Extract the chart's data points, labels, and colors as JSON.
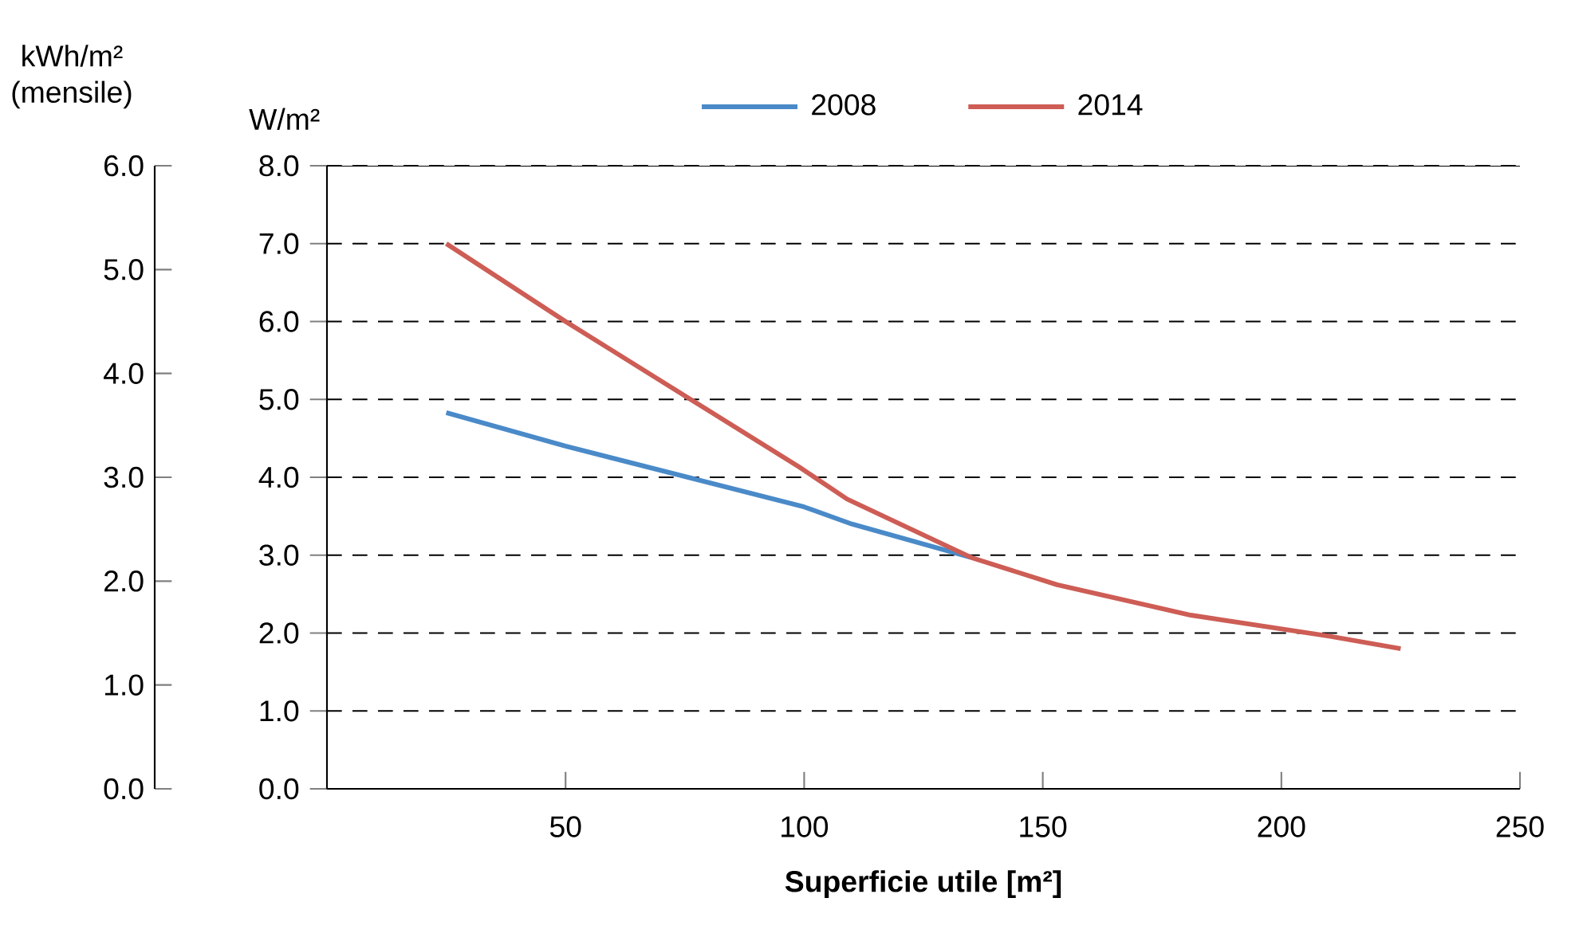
{
  "chart_data": {
    "type": "line",
    "xlabel": "**Superficie utile [m²]**",
    "ylabel": "W/m²",
    "y2label": "kWh/m² (mensile)",
    "series": [
      {
        "name": "2008",
        "color": "#4a8ac8",
        "x": [
          25,
          50,
          100,
          110,
          135
        ],
        "values": [
          4.83,
          4.4,
          3.62,
          3.4,
          2.97
        ]
      },
      {
        "name": "2014",
        "color": "#cd5d55",
        "x": [
          25,
          50,
          77,
          99,
          109,
          135,
          153,
          181,
          210,
          225
        ],
        "values": [
          7.0,
          6.0,
          4.97,
          4.13,
          3.72,
          2.97,
          2.62,
          2.23,
          1.96,
          1.8
        ]
      }
    ],
    "xlim": [
      0,
      250
    ],
    "xticks": [
      50,
      100,
      150,
      200,
      250
    ],
    "ylim": [
      0,
      8
    ],
    "yticks": [
      {
        "value": 0,
        "label": "0.0"
      },
      {
        "value": 1,
        "label": "1.0"
      },
      {
        "value": 2,
        "label": "2.0"
      },
      {
        "value": 3,
        "label": "3.0"
      },
      {
        "value": 4,
        "label": "4.0"
      },
      {
        "value": 5,
        "label": "5.0"
      },
      {
        "value": 6,
        "label": "6.0"
      },
      {
        "value": 7,
        "label": "7.0"
      },
      {
        "value": 8,
        "label": "8.0"
      }
    ],
    "y2lim": [
      0,
      6
    ],
    "y2ticks": [
      {
        "value": 0,
        "label": "0.0"
      },
      {
        "value": 1,
        "label": "1.0"
      },
      {
        "value": 2,
        "label": "2.0"
      },
      {
        "value": 3,
        "label": "3.0"
      },
      {
        "value": 4,
        "label": "4.0"
      },
      {
        "value": 5,
        "label": "5.0"
      },
      {
        "value": 6,
        "label": "6.0"
      }
    ],
    "grid": "y",
    "legend": "top",
    "line_style": "solid",
    "marker": "none"
  }
}
